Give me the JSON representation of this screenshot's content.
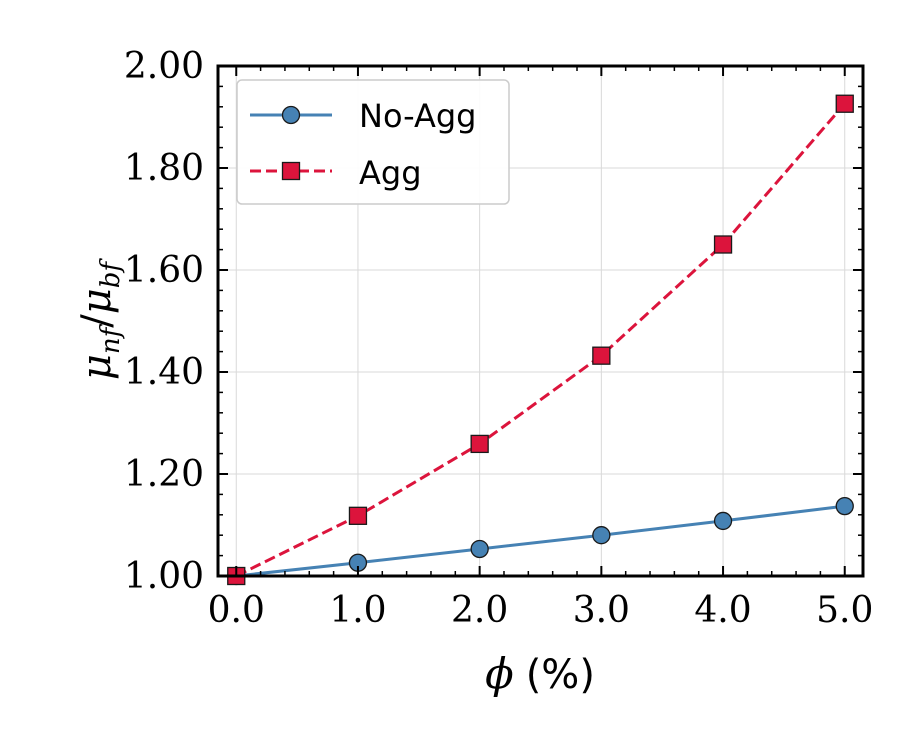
{
  "chart_data": {
    "type": "line",
    "x": [
      0.0,
      1.0,
      2.0,
      3.0,
      4.0,
      5.0
    ],
    "xlim": [
      -0.15,
      5.15
    ],
    "ylim": [
      1.0,
      2.0
    ],
    "xticks": [
      "0.0",
      "1.0",
      "2.0",
      "3.0",
      "4.0",
      "5.0"
    ],
    "yticks": [
      "1.00",
      "1.20",
      "1.40",
      "1.60",
      "1.80",
      "2.00"
    ],
    "xlabel": {
      "symbol": "ϕ",
      "unit": "(%)"
    },
    "ylabel": {
      "num": "μ",
      "num_sub": "nf",
      "sep": "/",
      "den": "μ",
      "den_sub": "bf"
    },
    "grid": true,
    "legend_position": "top-left",
    "series": [
      {
        "name": "No-Agg",
        "values": [
          1.0,
          1.026,
          1.053,
          1.08,
          1.108,
          1.137
        ],
        "color": "#4682b4",
        "linestyle": "solid",
        "marker": "circle"
      },
      {
        "name": "Agg",
        "values": [
          1.0,
          1.118,
          1.259,
          1.432,
          1.65,
          1.926
        ],
        "color": "#dc143c",
        "linestyle": "dashed",
        "marker": "square"
      }
    ]
  }
}
